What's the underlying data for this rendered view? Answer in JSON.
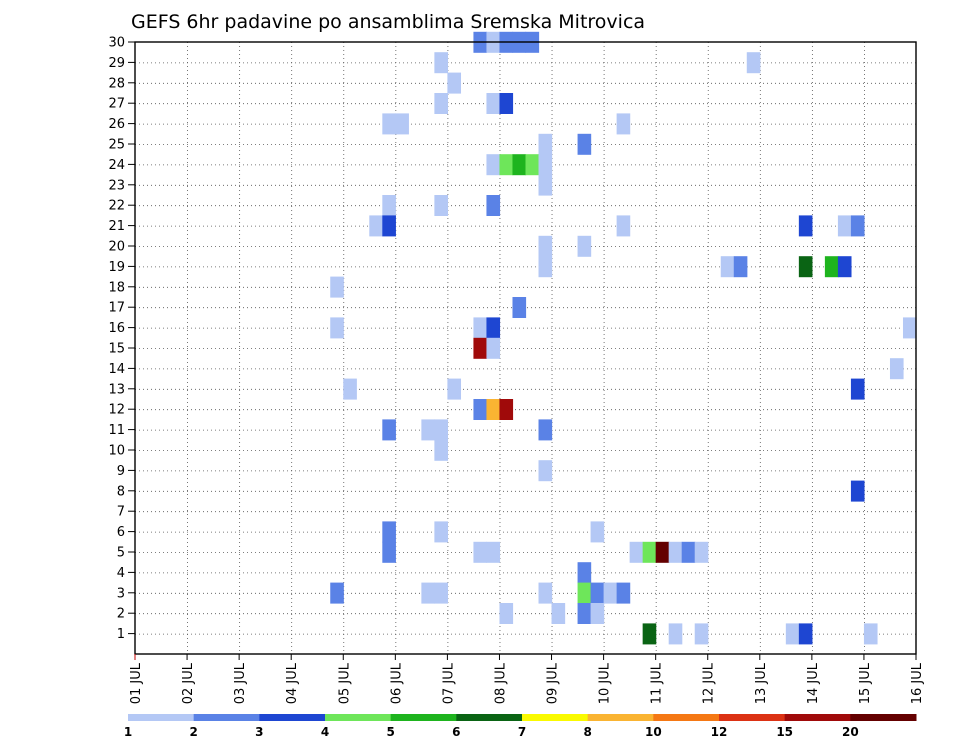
{
  "chart_data": {
    "type": "heatmap",
    "title": "GEFS 6hr padavine po ansamblima Sremska Mitrovica",
    "xlabel": "",
    "ylabel": "",
    "x_ticks": [
      "01 JUL",
      "02 JUL",
      "03 JUL",
      "04 JUL",
      "05 JUL",
      "06 JUL",
      "07 JUL",
      "08 JUL",
      "09 JUL",
      "10 JUL",
      "11 JUL",
      "12 JUL",
      "13 JUL",
      "14 JUL",
      "15 JUL",
      "16 JUL"
    ],
    "y_ticks": [
      "1",
      "2",
      "3",
      "4",
      "5",
      "6",
      "7",
      "8",
      "9",
      "10",
      "11",
      "12",
      "13",
      "14",
      "15",
      "16",
      "17",
      "18",
      "19",
      "20",
      "21",
      "22",
      "23",
      "24",
      "25",
      "26",
      "27",
      "28",
      "29",
      "30"
    ],
    "x_unit": "day (July, 6-hourly steps)",
    "y_unit": "ensemble member",
    "xlim": [
      1,
      16
    ],
    "ylim": [
      0,
      30
    ],
    "grid": true,
    "colorbar": {
      "labels": [
        "1",
        "2",
        "3",
        "4",
        "5",
        "6",
        "7",
        "8",
        "10",
        "12",
        "15",
        "20"
      ],
      "colors": [
        "#b4c8f5",
        "#5a82e6",
        "#1e46d2",
        "#6ee65a",
        "#1eb41e",
        "#0a6414",
        "#fafa00",
        "#fab432",
        "#f57814",
        "#dc3214",
        "#a00a0a",
        "#640000"
      ]
    },
    "cells": [
      {
        "d": 7.625,
        "m": 30,
        "v": 2
      },
      {
        "d": 7.875,
        "m": 30,
        "v": 1
      },
      {
        "d": 8.125,
        "m": 30,
        "v": 2
      },
      {
        "d": 8.375,
        "m": 30,
        "v": 2
      },
      {
        "d": 8.625,
        "m": 30,
        "v": 2
      },
      {
        "d": 6.875,
        "m": 29,
        "v": 1
      },
      {
        "d": 12.875,
        "m": 29,
        "v": 1
      },
      {
        "d": 7.125,
        "m": 28,
        "v": 1
      },
      {
        "d": 6.875,
        "m": 27,
        "v": 1
      },
      {
        "d": 7.875,
        "m": 27,
        "v": 1
      },
      {
        "d": 8.125,
        "m": 27,
        "v": 3
      },
      {
        "d": 5.875,
        "m": 26,
        "v": 1
      },
      {
        "d": 6.125,
        "m": 26,
        "v": 1
      },
      {
        "d": 10.375,
        "m": 26,
        "v": 1
      },
      {
        "d": 8.875,
        "m": 25,
        "v": 1
      },
      {
        "d": 9.625,
        "m": 25,
        "v": 2
      },
      {
        "d": 7.875,
        "m": 24,
        "v": 1
      },
      {
        "d": 8.125,
        "m": 24,
        "v": 4
      },
      {
        "d": 8.375,
        "m": 24,
        "v": 5
      },
      {
        "d": 8.625,
        "m": 24,
        "v": 4
      },
      {
        "d": 8.875,
        "m": 24,
        "v": 1
      },
      {
        "d": 8.875,
        "m": 23,
        "v": 1
      },
      {
        "d": 5.875,
        "m": 22,
        "v": 1
      },
      {
        "d": 6.875,
        "m": 22,
        "v": 1
      },
      {
        "d": 7.875,
        "m": 22,
        "v": 2
      },
      {
        "d": 5.625,
        "m": 21,
        "v": 1
      },
      {
        "d": 5.875,
        "m": 21,
        "v": 3
      },
      {
        "d": 10.375,
        "m": 21,
        "v": 1
      },
      {
        "d": 13.875,
        "m": 21,
        "v": 3
      },
      {
        "d": 14.625,
        "m": 21,
        "v": 1
      },
      {
        "d": 14.875,
        "m": 21,
        "v": 2
      },
      {
        "d": 8.875,
        "m": 20,
        "v": 1
      },
      {
        "d": 9.625,
        "m": 20,
        "v": 1
      },
      {
        "d": 8.875,
        "m": 19,
        "v": 1
      },
      {
        "d": 12.375,
        "m": 19,
        "v": 1
      },
      {
        "d": 12.625,
        "m": 19,
        "v": 2
      },
      {
        "d": 13.875,
        "m": 19,
        "v": 6
      },
      {
        "d": 14.375,
        "m": 19,
        "v": 5
      },
      {
        "d": 14.625,
        "m": 19,
        "v": 3
      },
      {
        "d": 4.875,
        "m": 18,
        "v": 1
      },
      {
        "d": 8.375,
        "m": 17,
        "v": 2
      },
      {
        "d": 4.875,
        "m": 16,
        "v": 1
      },
      {
        "d": 7.625,
        "m": 16,
        "v": 1
      },
      {
        "d": 7.875,
        "m": 16,
        "v": 3
      },
      {
        "d": 15.875,
        "m": 16,
        "v": 1
      },
      {
        "d": 7.625,
        "m": 15,
        "v": 15
      },
      {
        "d": 7.875,
        "m": 15,
        "v": 1
      },
      {
        "d": 15.625,
        "m": 14,
        "v": 1
      },
      {
        "d": 5.125,
        "m": 13,
        "v": 1
      },
      {
        "d": 7.125,
        "m": 13,
        "v": 1
      },
      {
        "d": 14.875,
        "m": 13,
        "v": 3
      },
      {
        "d": 7.625,
        "m": 12,
        "v": 2
      },
      {
        "d": 7.875,
        "m": 12,
        "v": 8
      },
      {
        "d": 8.125,
        "m": 12,
        "v": 15
      },
      {
        "d": 5.875,
        "m": 11,
        "v": 2
      },
      {
        "d": 6.625,
        "m": 11,
        "v": 1
      },
      {
        "d": 6.875,
        "m": 11,
        "v": 1
      },
      {
        "d": 8.875,
        "m": 11,
        "v": 2
      },
      {
        "d": 6.875,
        "m": 10,
        "v": 1
      },
      {
        "d": 8.875,
        "m": 9,
        "v": 1
      },
      {
        "d": 14.875,
        "m": 8,
        "v": 3
      },
      {
        "d": 5.875,
        "m": 6,
        "v": 2
      },
      {
        "d": 6.875,
        "m": 6,
        "v": 1
      },
      {
        "d": 9.875,
        "m": 6,
        "v": 1
      },
      {
        "d": 5.875,
        "m": 5,
        "v": 2
      },
      {
        "d": 7.625,
        "m": 5,
        "v": 1
      },
      {
        "d": 7.875,
        "m": 5,
        "v": 1
      },
      {
        "d": 10.625,
        "m": 5,
        "v": 1
      },
      {
        "d": 10.875,
        "m": 5,
        "v": 4
      },
      {
        "d": 11.125,
        "m": 5,
        "v": 20
      },
      {
        "d": 11.375,
        "m": 5,
        "v": 1
      },
      {
        "d": 11.625,
        "m": 5,
        "v": 2
      },
      {
        "d": 11.875,
        "m": 5,
        "v": 1
      },
      {
        "d": 9.625,
        "m": 4,
        "v": 2
      },
      {
        "d": 4.875,
        "m": 3,
        "v": 2
      },
      {
        "d": 6.625,
        "m": 3,
        "v": 1
      },
      {
        "d": 6.875,
        "m": 3,
        "v": 1
      },
      {
        "d": 8.875,
        "m": 3,
        "v": 1
      },
      {
        "d": 9.625,
        "m": 3,
        "v": 4
      },
      {
        "d": 9.875,
        "m": 3,
        "v": 2
      },
      {
        "d": 10.125,
        "m": 3,
        "v": 1
      },
      {
        "d": 10.375,
        "m": 3,
        "v": 2
      },
      {
        "d": 8.125,
        "m": 2,
        "v": 1
      },
      {
        "d": 9.125,
        "m": 2,
        "v": 1
      },
      {
        "d": 9.625,
        "m": 2,
        "v": 2
      },
      {
        "d": 9.875,
        "m": 2,
        "v": 1
      },
      {
        "d": 10.875,
        "m": 1,
        "v": 6
      },
      {
        "d": 11.375,
        "m": 1,
        "v": 1
      },
      {
        "d": 11.875,
        "m": 1,
        "v": 1
      },
      {
        "d": 13.625,
        "m": 1,
        "v": 1
      },
      {
        "d": 13.875,
        "m": 1,
        "v": 3
      },
      {
        "d": 15.125,
        "m": 1,
        "v": 1
      }
    ]
  }
}
